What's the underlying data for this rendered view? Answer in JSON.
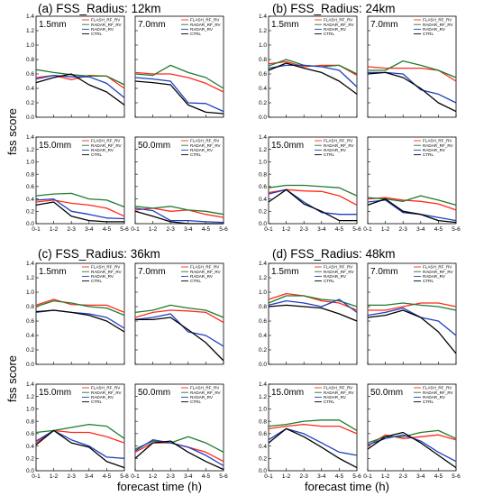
{
  "figure": {
    "ylabel": "fss score",
    "xlabel": "forecast time (h)"
  },
  "chart_data": {
    "type": "line",
    "x_categories": [
      "0-1",
      "1-2",
      "2-3",
      "3-4",
      "4-5",
      "5-6"
    ],
    "ylim": [
      0,
      1.4
    ],
    "yticks": [
      "0.0",
      "0.2",
      "0.4",
      "0.6",
      "0.8",
      "1.0",
      "1.2",
      "1.4"
    ],
    "legend": [
      "FLASH_RF_RV",
      "RADAR_RF_RV",
      "RADAR_RV",
      "CTRL"
    ],
    "colors": {
      "FLASH_RF_RV": "#ff2a1a",
      "RADAR_RF_RV": "#1f7a2e",
      "RADAR_RV": "#1f3fbf",
      "CTRL": "#000000"
    },
    "groups": [
      {
        "title": "(a) FSS_Radius: 12km",
        "panels": [
          {
            "label": "1.5mm",
            "series": {
              "FLASH_RF_RV": [
                0.55,
                0.58,
                0.52,
                0.58,
                0.57,
                0.4
              ],
              "RADAR_RF_RV": [
                0.66,
                0.62,
                0.59,
                0.57,
                0.57,
                0.45
              ],
              "RADAR_RV": [
                0.53,
                0.58,
                0.56,
                0.56,
                0.47,
                0.27
              ],
              "CTRL": [
                0.48,
                0.55,
                0.6,
                0.45,
                0.35,
                0.17
              ]
            }
          },
          {
            "label": "7.0mm",
            "series": {
              "FLASH_RF_RV": [
                0.62,
                0.6,
                0.6,
                0.55,
                0.47,
                0.35
              ],
              "RADAR_RF_RV": [
                0.6,
                0.58,
                0.72,
                0.62,
                0.55,
                0.4
              ],
              "RADAR_RV": [
                0.55,
                0.53,
                0.5,
                0.2,
                0.19,
                0.08
              ],
              "CTRL": [
                0.5,
                0.48,
                0.45,
                0.17,
                0.07,
                0.05
              ]
            }
          },
          {
            "label": "15.0mm",
            "series": {
              "FLASH_RF_RV": [
                0.35,
                0.38,
                0.33,
                0.3,
                0.25,
                0.12
              ],
              "RADAR_RF_RV": [
                0.45,
                0.48,
                0.49,
                0.4,
                0.38,
                0.27
              ],
              "RADAR_RV": [
                0.38,
                0.4,
                0.2,
                0.15,
                0.09,
                0.08
              ],
              "CTRL": [
                0.3,
                0.35,
                0.12,
                0.05,
                0.03,
                0.03
              ]
            }
          },
          {
            "label": "50.0mm",
            "series": {
              "FLASH_RF_RV": [
                0.22,
                0.25,
                0.2,
                0.22,
                0.15,
                0.1
              ],
              "RADAR_RF_RV": [
                0.28,
                0.25,
                0.28,
                0.22,
                0.2,
                0.15
              ],
              "RADAR_RV": [
                0.25,
                0.21,
                0.05,
                0.05,
                0.03,
                0.02
              ],
              "CTRL": [
                0.2,
                0.12,
                0.03,
                0.0,
                0.0,
                0.0
              ]
            }
          }
        ]
      },
      {
        "title": "(b) FSS_Radius: 24km",
        "panels": [
          {
            "label": "1.5mm",
            "series": {
              "FLASH_RF_RV": [
                0.74,
                0.77,
                0.7,
                0.72,
                0.72,
                0.58
              ],
              "RADAR_RF_RV": [
                0.71,
                0.8,
                0.72,
                0.7,
                0.72,
                0.6
              ],
              "RADAR_RV": [
                0.68,
                0.72,
                0.72,
                0.7,
                0.65,
                0.42
              ],
              "CTRL": [
                0.65,
                0.75,
                0.68,
                0.62,
                0.5,
                0.32
              ]
            }
          },
          {
            "label": "7.0mm",
            "series": {
              "FLASH_RF_RV": [
                0.7,
                0.68,
                0.68,
                0.68,
                0.65,
                0.5
              ],
              "RADAR_RF_RV": [
                0.65,
                0.65,
                0.78,
                0.72,
                0.65,
                0.55
              ],
              "RADAR_RV": [
                0.62,
                0.62,
                0.6,
                0.38,
                0.32,
                0.2
              ],
              "CTRL": [
                0.6,
                0.62,
                0.55,
                0.4,
                0.2,
                0.08
              ]
            }
          },
          {
            "label": "15.0mm",
            "series": {
              "FLASH_RF_RV": [
                0.5,
                0.55,
                0.53,
                0.52,
                0.45,
                0.3
              ],
              "RADAR_RF_RV": [
                0.58,
                0.62,
                0.62,
                0.6,
                0.58,
                0.45
              ],
              "RADAR_RV": [
                0.48,
                0.55,
                0.35,
                0.18,
                0.15,
                0.15
              ],
              "CTRL": [
                0.35,
                0.55,
                0.32,
                0.2,
                0.05,
                0.05
              ]
            }
          },
          {
            "label": "",
            "series": {
              "FLASH_RF_RV": [
                0.4,
                0.42,
                0.38,
                0.36,
                0.32,
                0.22
              ],
              "RADAR_RF_RV": [
                0.42,
                0.4,
                0.36,
                0.45,
                0.38,
                0.3
              ],
              "RADAR_RV": [
                0.35,
                0.38,
                0.18,
                0.15,
                0.1,
                0.05
              ],
              "CTRL": [
                0.3,
                0.4,
                0.2,
                0.15,
                0.05,
                0.02
              ]
            }
          }
        ]
      },
      {
        "title": "(c) FSS_Radius: 36km",
        "panels": [
          {
            "label": "1.5mm",
            "series": {
              "FLASH_RF_RV": [
                0.82,
                0.9,
                0.83,
                0.82,
                0.82,
                0.72
              ],
              "RADAR_RF_RV": [
                0.8,
                0.88,
                0.85,
                0.8,
                0.78,
                0.68
              ],
              "RADAR_RV": [
                0.72,
                0.75,
                0.72,
                0.7,
                0.65,
                0.5
              ],
              "CTRL": [
                0.73,
                0.75,
                0.72,
                0.68,
                0.6,
                0.45
              ]
            }
          },
          {
            "label": "7.0mm",
            "series": {
              "FLASH_RF_RV": [
                0.65,
                0.72,
                0.75,
                0.74,
                0.72,
                0.58
              ],
              "RADAR_RF_RV": [
                0.72,
                0.75,
                0.82,
                0.78,
                0.75,
                0.65
              ],
              "RADAR_RV": [
                0.62,
                0.65,
                0.7,
                0.45,
                0.4,
                0.25
              ],
              "CTRL": [
                0.62,
                0.62,
                0.65,
                0.48,
                0.3,
                0.05
              ]
            }
          },
          {
            "label": "15.0mm",
            "series": {
              "FLASH_RF_RV": [
                0.45,
                0.65,
                0.62,
                0.62,
                0.55,
                0.45
              ],
              "RADAR_RF_RV": [
                0.62,
                0.65,
                0.7,
                0.75,
                0.72,
                0.52
              ],
              "RADAR_RV": [
                0.48,
                0.65,
                0.5,
                0.4,
                0.22,
                0.2
              ],
              "CTRL": [
                0.42,
                0.65,
                0.45,
                0.38,
                0.15,
                0.05
              ]
            }
          },
          {
            "label": "50.0mm",
            "series": {
              "FLASH_RF_RV": [
                0.3,
                0.45,
                0.45,
                0.38,
                0.3,
                0.15
              ],
              "RADAR_RF_RV": [
                0.35,
                0.48,
                0.45,
                0.55,
                0.45,
                0.3
              ],
              "RADAR_RV": [
                0.32,
                0.5,
                0.45,
                0.38,
                0.25,
                0.08
              ],
              "CTRL": [
                0.2,
                0.45,
                0.48,
                0.3,
                0.15,
                0.02
              ]
            }
          }
        ]
      },
      {
        "title": "(d) FSS_Radius: 48km",
        "panels": [
          {
            "label": "1.5mm",
            "series": {
              "FLASH_RF_RV": [
                0.9,
                0.98,
                0.95,
                0.88,
                0.85,
                0.75
              ],
              "RADAR_RF_RV": [
                0.85,
                0.95,
                0.95,
                0.9,
                0.88,
                0.8
              ],
              "RADAR_RV": [
                0.82,
                0.88,
                0.85,
                0.8,
                0.9,
                0.72
              ],
              "CTRL": [
                0.8,
                0.82,
                0.8,
                0.78,
                0.7,
                0.6
              ]
            }
          },
          {
            "label": "7.0mm",
            "series": {
              "FLASH_RF_RV": [
                0.75,
                0.75,
                0.8,
                0.85,
                0.85,
                0.8
              ],
              "RADAR_RF_RV": [
                0.82,
                0.82,
                0.85,
                0.82,
                0.8,
                0.75
              ],
              "RADAR_RV": [
                0.68,
                0.72,
                0.78,
                0.65,
                0.6,
                0.4
              ],
              "CTRL": [
                0.65,
                0.68,
                0.75,
                0.65,
                0.45,
                0.15
              ]
            }
          },
          {
            "label": "15.0mm",
            "series": {
              "FLASH_RF_RV": [
                0.68,
                0.72,
                0.75,
                0.72,
                0.72,
                0.6
              ],
              "RADAR_RF_RV": [
                0.72,
                0.75,
                0.8,
                0.82,
                0.82,
                0.65
              ],
              "RADAR_RV": [
                0.5,
                0.68,
                0.6,
                0.45,
                0.3,
                0.25
              ],
              "CTRL": [
                0.45,
                0.68,
                0.55,
                0.38,
                0.2,
                0.05
              ]
            }
          },
          {
            "label": "50.0mm",
            "series": {
              "FLASH_RF_RV": [
                0.4,
                0.58,
                0.52,
                0.55,
                0.58,
                0.5
              ],
              "RADAR_RF_RV": [
                0.45,
                0.55,
                0.55,
                0.62,
                0.65,
                0.52
              ],
              "RADAR_RV": [
                0.42,
                0.52,
                0.58,
                0.48,
                0.3,
                0.15
              ],
              "CTRL": [
                0.35,
                0.55,
                0.62,
                0.45,
                0.25,
                0.05
              ]
            }
          }
        ]
      }
    ]
  }
}
